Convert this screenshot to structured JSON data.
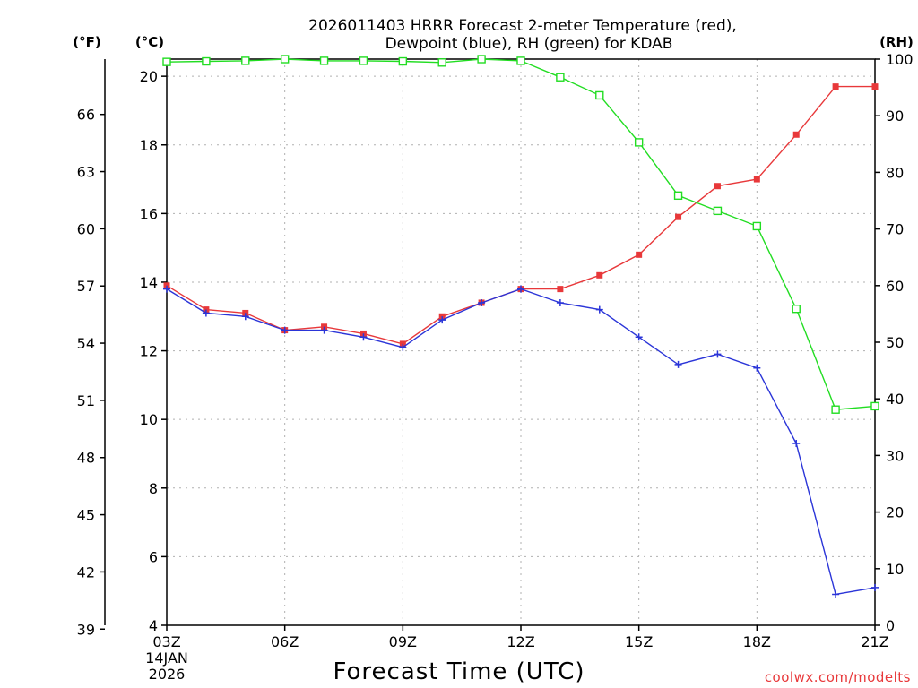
{
  "chart_data": {
    "type": "line",
    "title": [
      "2026011403 HRRR Forecast 2-meter Temperature (red),",
      "Dewpoint (blue), RH (green) for KDAB"
    ],
    "units": {
      "left_f": "(°F)",
      "left_c": "(°C)",
      "right": "(RH)"
    },
    "xlabel": "Forecast Time (UTC)",
    "credit": "coolwx.com/modelts",
    "x_hours": [
      3,
      4,
      5,
      6,
      7,
      8,
      9,
      10,
      11,
      12,
      13,
      14,
      15,
      16,
      17,
      18,
      19,
      20,
      21
    ],
    "x_ticks": [
      {
        "hour": 3,
        "label": "03Z"
      },
      {
        "hour": 6,
        "label": "06Z"
      },
      {
        "hour": 9,
        "label": "09Z"
      },
      {
        "hour": 12,
        "label": "12Z"
      },
      {
        "hour": 15,
        "label": "15Z"
      },
      {
        "hour": 18,
        "label": "18Z"
      },
      {
        "hour": 21,
        "label": "21Z"
      }
    ],
    "x_date_lines": [
      "14JAN",
      "2026"
    ],
    "ylim_c": [
      4,
      20.5
    ],
    "y_ticks_c": [
      4,
      6,
      8,
      10,
      12,
      14,
      16,
      18,
      20
    ],
    "y_ticks_f": [
      39,
      42,
      45,
      48,
      51,
      54,
      57,
      60,
      63,
      66
    ],
    "ylim_rh": [
      0,
      100
    ],
    "y_ticks_rh": [
      0,
      10,
      20,
      30,
      40,
      50,
      60,
      70,
      80,
      90,
      100
    ],
    "grid": true,
    "series": [
      {
        "name": "Temperature",
        "axis": "celsius",
        "color": "#e8383a",
        "marker": "filled-square",
        "values": [
          13.9,
          13.2,
          13.1,
          12.6,
          12.7,
          12.5,
          12.2,
          13.0,
          13.4,
          13.8,
          13.8,
          14.2,
          14.8,
          15.9,
          16.8,
          17.0,
          18.3,
          19.7,
          19.7
        ]
      },
      {
        "name": "Dewpoint",
        "axis": "celsius",
        "color": "#2b35d8",
        "marker": "plus",
        "values": [
          13.8,
          13.1,
          13.0,
          12.6,
          12.6,
          12.4,
          12.1,
          12.9,
          13.4,
          13.8,
          13.4,
          13.2,
          12.4,
          11.6,
          11.9,
          11.5,
          9.3,
          4.9,
          5.1
        ]
      },
      {
        "name": "RH",
        "axis": "rh",
        "color": "#22dd22",
        "marker": "open-square",
        "values": [
          99.5,
          99.6,
          99.7,
          100.0,
          99.7,
          99.7,
          99.6,
          99.4,
          100.0,
          99.7,
          96.8,
          93.6,
          85.3,
          75.9,
          73.2,
          70.5,
          55.9,
          38.1,
          38.7
        ]
      }
    ]
  }
}
